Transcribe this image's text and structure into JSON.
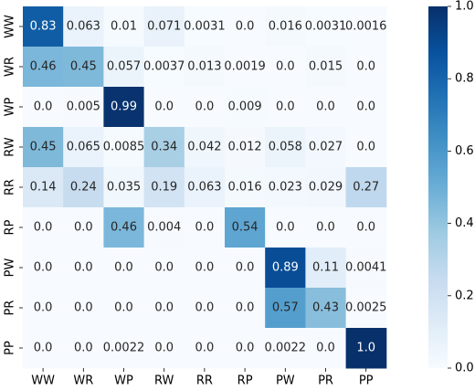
{
  "chart_data": {
    "type": "heatmap",
    "x_labels": [
      "WW",
      "WR",
      "WP",
      "RW",
      "RR",
      "RP",
      "PW",
      "PR",
      "PP"
    ],
    "y_labels": [
      "WW",
      "WR",
      "WP",
      "RW",
      "RR",
      "RP",
      "PW",
      "PR",
      "PP"
    ],
    "values": [
      [
        0.83,
        0.063,
        0.01,
        0.071,
        0.0031,
        0.0,
        0.016,
        0.0031,
        0.0016
      ],
      [
        0.46,
        0.45,
        0.057,
        0.0037,
        0.013,
        0.0019,
        0.0,
        0.015,
        0.0
      ],
      [
        0.0,
        0.005,
        0.99,
        0.0,
        0.0,
        0.009,
        0.0,
        0.0,
        0.0
      ],
      [
        0.45,
        0.065,
        0.0085,
        0.34,
        0.042,
        0.012,
        0.058,
        0.027,
        0.0
      ],
      [
        0.14,
        0.24,
        0.035,
        0.19,
        0.063,
        0.016,
        0.023,
        0.029,
        0.27
      ],
      [
        0.0,
        0.0,
        0.46,
        0.004,
        0.0,
        0.54,
        0.0,
        0.0,
        0.0
      ],
      [
        0.0,
        0.0,
        0.0,
        0.0,
        0.0,
        0.0,
        0.89,
        0.11,
        0.0041
      ],
      [
        0.0,
        0.0,
        0.0,
        0.0,
        0.0,
        0.0,
        0.57,
        0.43,
        0.0025
      ],
      [
        0.0,
        0.0,
        0.0022,
        0.0,
        0.0,
        0.0,
        0.0022,
        0.0,
        1.0
      ]
    ],
    "value_labels": [
      [
        "0.83",
        "0.063",
        "0.01",
        "0.071",
        "0.0031",
        "0.0",
        "0.016",
        "0.0031",
        "0.0016"
      ],
      [
        "0.46",
        "0.45",
        "0.057",
        "0.0037",
        "0.013",
        "0.0019",
        "0.0",
        "0.015",
        "0.0"
      ],
      [
        "0.0",
        "0.005",
        "0.99",
        "0.0",
        "0.0",
        "0.009",
        "0.0",
        "0.0",
        "0.0"
      ],
      [
        "0.45",
        "0.065",
        "0.0085",
        "0.34",
        "0.042",
        "0.012",
        "0.058",
        "0.027",
        "0.0"
      ],
      [
        "0.14",
        "0.24",
        "0.035",
        "0.19",
        "0.063",
        "0.016",
        "0.023",
        "0.029",
        "0.27"
      ],
      [
        "0.0",
        "0.0",
        "0.46",
        "0.004",
        "0.0",
        "0.54",
        "0.0",
        "0.0",
        "0.0"
      ],
      [
        "0.0",
        "0.0",
        "0.0",
        "0.0",
        "0.0",
        "0.0",
        "0.89",
        "0.11",
        "0.0041"
      ],
      [
        "0.0",
        "0.0",
        "0.0",
        "0.0",
        "0.0",
        "0.0",
        "0.57",
        "0.43",
        "0.0025"
      ],
      [
        "0.0",
        "0.0",
        "0.0022",
        "0.0",
        "0.0",
        "0.0",
        "0.0022",
        "0.0",
        "1.0"
      ]
    ],
    "colormap": "Blues",
    "color_range": [
      0.0,
      1.0
    ],
    "colorbar_ticks": [
      0.0,
      0.2,
      0.4,
      0.6,
      0.8,
      1.0
    ],
    "colorbar_tick_labels": [
      "0.0",
      "0.2",
      "0.4",
      "0.6",
      "0.8",
      "1.0"
    ],
    "title": "",
    "xlabel": "",
    "ylabel": ""
  }
}
